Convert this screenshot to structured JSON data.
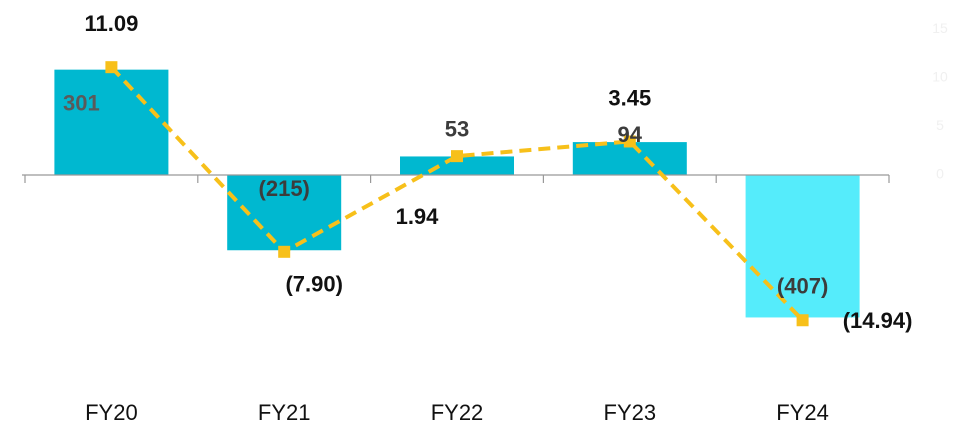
{
  "chart_data": {
    "type": "combo",
    "categories": [
      "FY20",
      "FY21",
      "FY22",
      "FY23",
      "FY24"
    ],
    "series": [
      {
        "type": "bar",
        "colors": [
          "#00b8d0",
          "#00b8d0",
          "#00b8d0",
          "#00b8d0",
          "#55ecfb"
        ],
        "values": [
          301,
          -215,
          53,
          94,
          -407
        ],
        "value_labels": [
          "301",
          "(215)",
          "53",
          "94",
          "(407)"
        ]
      },
      {
        "type": "line",
        "axis": "y2",
        "color": "#f7c01a",
        "values": [
          11.09,
          -7.9,
          1.94,
          3.45,
          -14.94
        ],
        "value_labels": [
          "11.09",
          "(7.90)",
          "1.94",
          "3.45",
          "(14.94)"
        ]
      }
    ],
    "ylim": [
      -500,
      500
    ],
    "y2lim": [
      -18,
      18
    ],
    "y2ticks": [
      0,
      5,
      10,
      15
    ]
  }
}
